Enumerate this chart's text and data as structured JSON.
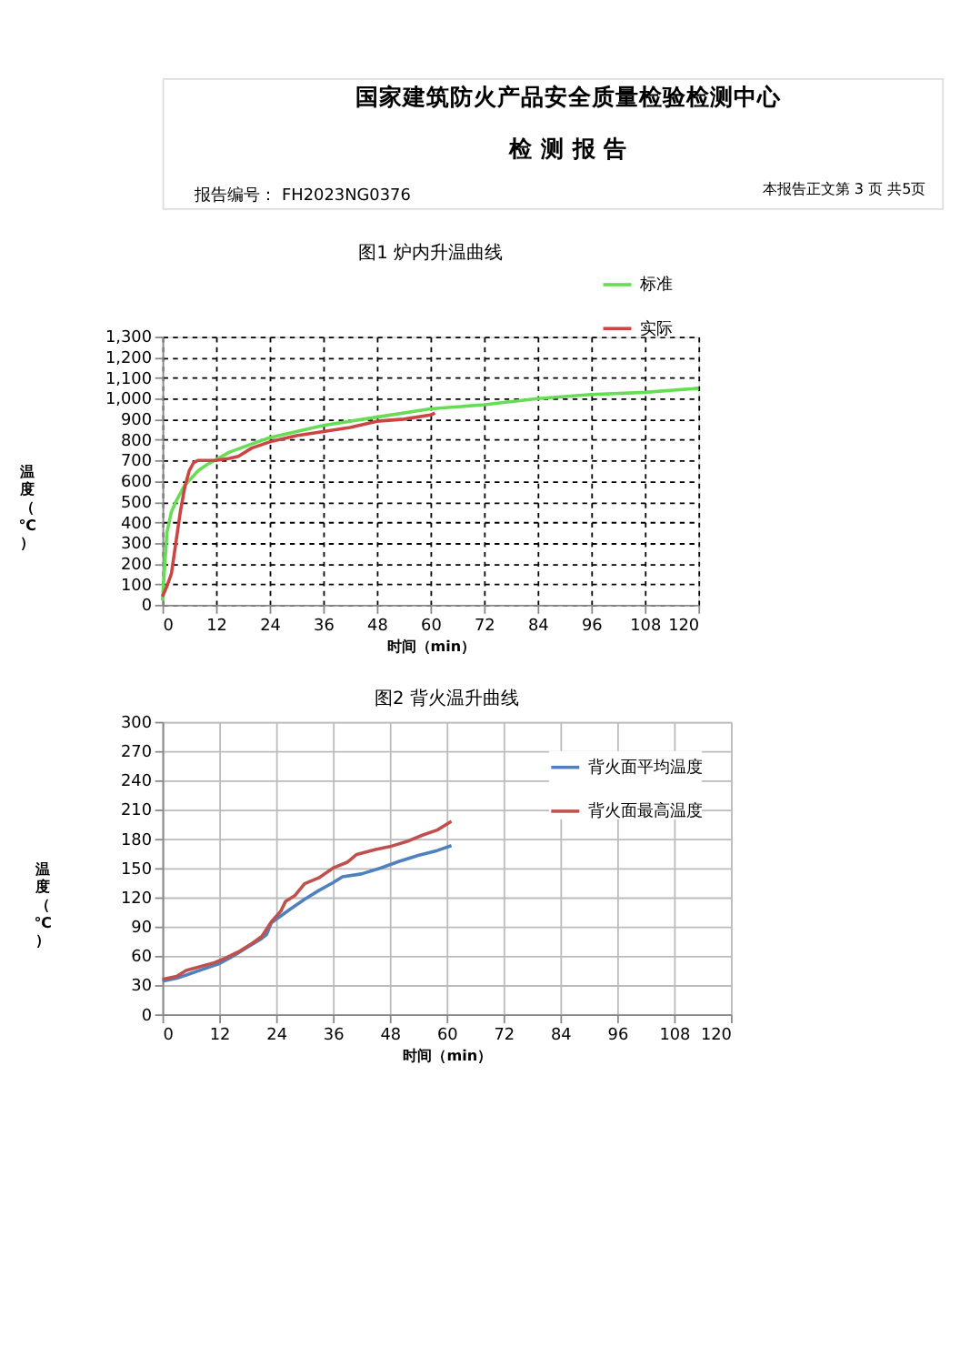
{
  "chart_data": [
    {
      "type": "line",
      "title": "图1 炉内升温曲线",
      "xlabel": "时间（min）",
      "ylabel": "温度（℃）",
      "annotations": [
        "国家建筑防火产品安全质量检验检测中心",
        "检 测 报 告",
        "报告编号： FH2023NG0376",
        "本报告正文第 3 页 共5页"
      ],
      "series": [
        {
          "name": "标准",
          "color": "#66dd55",
          "x": [
            0,
            1,
            2,
            3,
            5,
            8,
            10,
            15,
            20,
            24,
            30,
            36,
            45,
            48,
            60,
            72,
            84,
            90,
            96,
            108,
            120
          ],
          "values": [
            20,
            350,
            450,
            500,
            580,
            650,
            680,
            740,
            780,
            810,
            840,
            870,
            900,
            910,
            950,
            970,
            1000,
            1010,
            1020,
            1030,
            1050
          ]
        },
        {
          "name": "实际",
          "color": "#cc4444",
          "x": [
            0,
            1,
            2,
            3,
            4,
            5,
            6,
            7,
            8,
            12,
            15,
            17,
            20,
            24,
            30,
            36,
            42,
            48,
            54,
            60,
            61
          ],
          "values": [
            40,
            90,
            150,
            300,
            450,
            570,
            650,
            690,
            700,
            700,
            710,
            720,
            760,
            790,
            820,
            840,
            860,
            890,
            900,
            920,
            930
          ]
        }
      ],
      "xlim": [
        0,
        120
      ],
      "xticks": [
        0,
        12,
        24,
        36,
        48,
        60,
        72,
        84,
        96,
        108,
        120
      ],
      "ylim": [
        0,
        1300
      ],
      "yticks": [
        0,
        100,
        200,
        300,
        400,
        500,
        600,
        700,
        800,
        900,
        {
          "value": 1000,
          "label": "1,000"
        },
        {
          "value": 1100,
          "label": "1,100"
        },
        {
          "value": 1200,
          "label": "1,200"
        },
        {
          "value": 1300,
          "label": "1,300"
        }
      ],
      "grid": true,
      "legend": "top right",
      "line_style": "solid"
    },
    {
      "type": "line",
      "title": "图2 背火温升曲线",
      "xlabel": "时间（min）",
      "ylabel": "温度（℃）",
      "series": [
        {
          "name": "背火面平均温度",
          "color": "#4f81bd",
          "x": [
            0,
            3,
            6,
            9,
            12,
            15,
            18,
            21,
            22,
            23,
            25,
            27,
            30,
            33,
            36,
            38,
            42,
            46,
            50,
            54,
            58,
            61
          ],
          "values": [
            34,
            37,
            42,
            47,
            52,
            60,
            69,
            78,
            82,
            94,
            101,
            108,
            118,
            127,
            135,
            141,
            144,
            150,
            157,
            163,
            168,
            173
          ]
        },
        {
          "name": "背火面最高温度",
          "color": "#c0504d",
          "x": [
            0,
            3,
            5,
            8,
            11,
            13,
            16,
            19,
            21,
            23,
            25,
            26,
            28,
            30,
            33,
            36,
            39,
            41,
            45,
            48,
            52,
            55,
            58,
            61
          ],
          "values": [
            36,
            39,
            45,
            49,
            53,
            57,
            64,
            73,
            80,
            95,
            106,
            116,
            122,
            134,
            140,
            150,
            156,
            164,
            169,
            172,
            178,
            184,
            189,
            198
          ]
        }
      ],
      "xlim": [
        0,
        120
      ],
      "xticks": [
        0,
        12,
        24,
        36,
        48,
        60,
        72,
        84,
        96,
        108,
        120
      ],
      "ylim": [
        0,
        300
      ],
      "yticks": [
        0,
        30,
        60,
        90,
        120,
        150,
        180,
        210,
        240,
        270,
        300
      ],
      "grid": true,
      "legend": "top right",
      "line_style": "solid"
    }
  ]
}
